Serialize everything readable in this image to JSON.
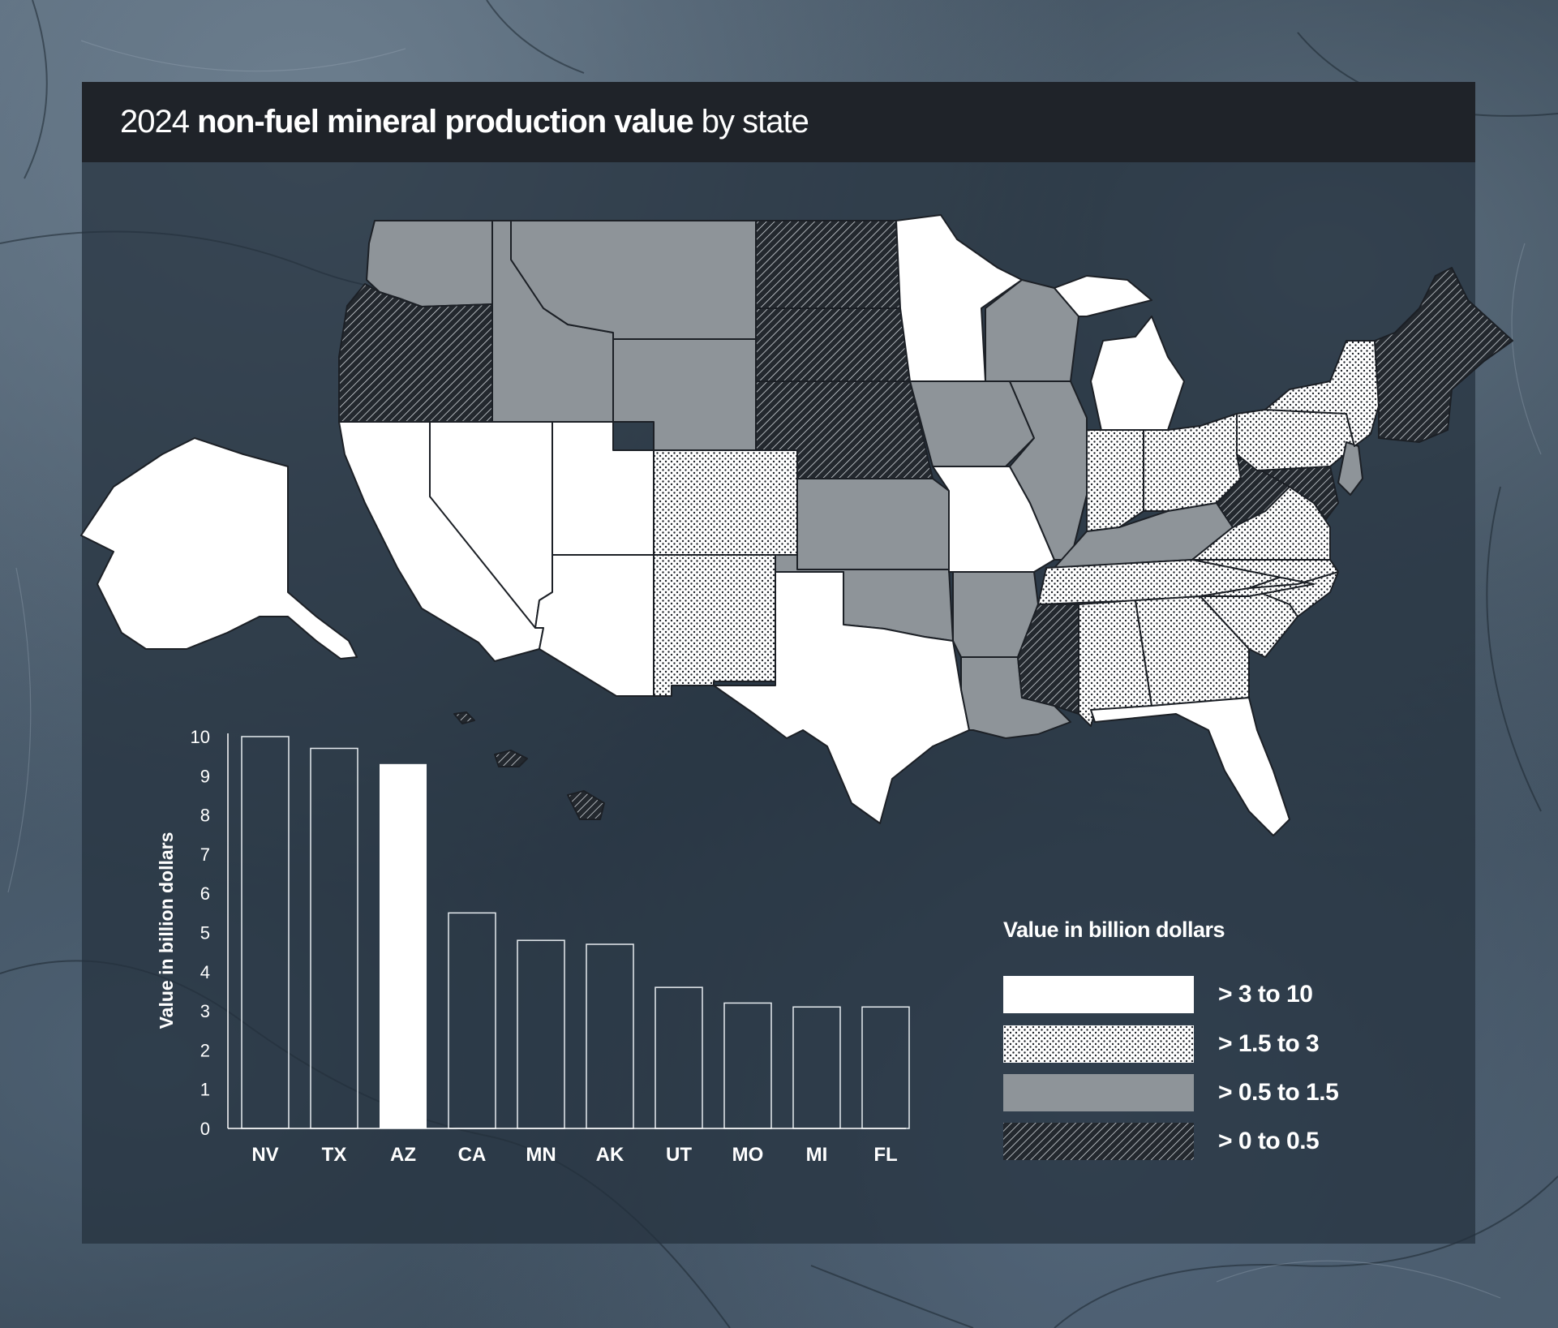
{
  "title": {
    "year": "2024",
    "bold": "non-fuel mineral production value",
    "suffix": "by state"
  },
  "colors": {
    "high": "#ffffff",
    "mid_high": "dotted-white",
    "mid_low": "#8e9499",
    "low": "hatched-dark"
  },
  "map": {
    "categories": {
      "WA": "mid_low",
      "OR": "low",
      "CA": "high",
      "NV": "high",
      "ID": "mid_low",
      "MT": "mid_low",
      "WY": "mid_low",
      "UT": "high",
      "AZ": "high",
      "CO": "mid_high",
      "NM": "mid_high",
      "ND": "low",
      "SD": "low",
      "NE": "low",
      "KS": "mid_low",
      "OK": "mid_low",
      "TX": "high",
      "MN": "high",
      "IA": "mid_low",
      "MO": "high",
      "AR": "mid_low",
      "LA": "mid_low",
      "WI": "mid_low",
      "IL": "mid_low",
      "MI": "high",
      "IN": "mid_high",
      "OH": "mid_high",
      "KY": "mid_low",
      "TN": "mid_high",
      "MS": "low",
      "AL": "mid_high",
      "GA": "mid_high",
      "FL": "high",
      "SC": "mid_high",
      "NC": "mid_high",
      "VA": "mid_high",
      "WV": "low",
      "PA": "mid_high",
      "NY": "mid_high",
      "NJ": "mid_low",
      "MD": "low",
      "DE": "low",
      "New England": "low",
      "AK": "high",
      "HI": "low"
    }
  },
  "chart_data": {
    "type": "bar",
    "categories": [
      "NV",
      "TX",
      "AZ",
      "CA",
      "MN",
      "AK",
      "UT",
      "MO",
      "MI",
      "FL"
    ],
    "values": [
      10.0,
      9.7,
      9.3,
      5.5,
      4.8,
      4.7,
      3.6,
      3.2,
      3.1,
      3.1
    ],
    "highlight": "AZ",
    "ylabel": "Value in billion dollars",
    "ylim": [
      0,
      10
    ],
    "yticks": [
      "0",
      "1",
      "2",
      "3",
      "4",
      "5",
      "6",
      "7",
      "8",
      "9",
      "10"
    ],
    "grid": false
  },
  "legend": {
    "title": "Value in billion dollars",
    "items": [
      {
        "label": "> 3 to 10",
        "key": "high"
      },
      {
        "label": "> 1.5 to 3",
        "key": "mid_high"
      },
      {
        "label": "> 0.5 to 1.5",
        "key": "mid_low"
      },
      {
        "label": "> 0 to 0.5",
        "key": "low"
      }
    ]
  }
}
